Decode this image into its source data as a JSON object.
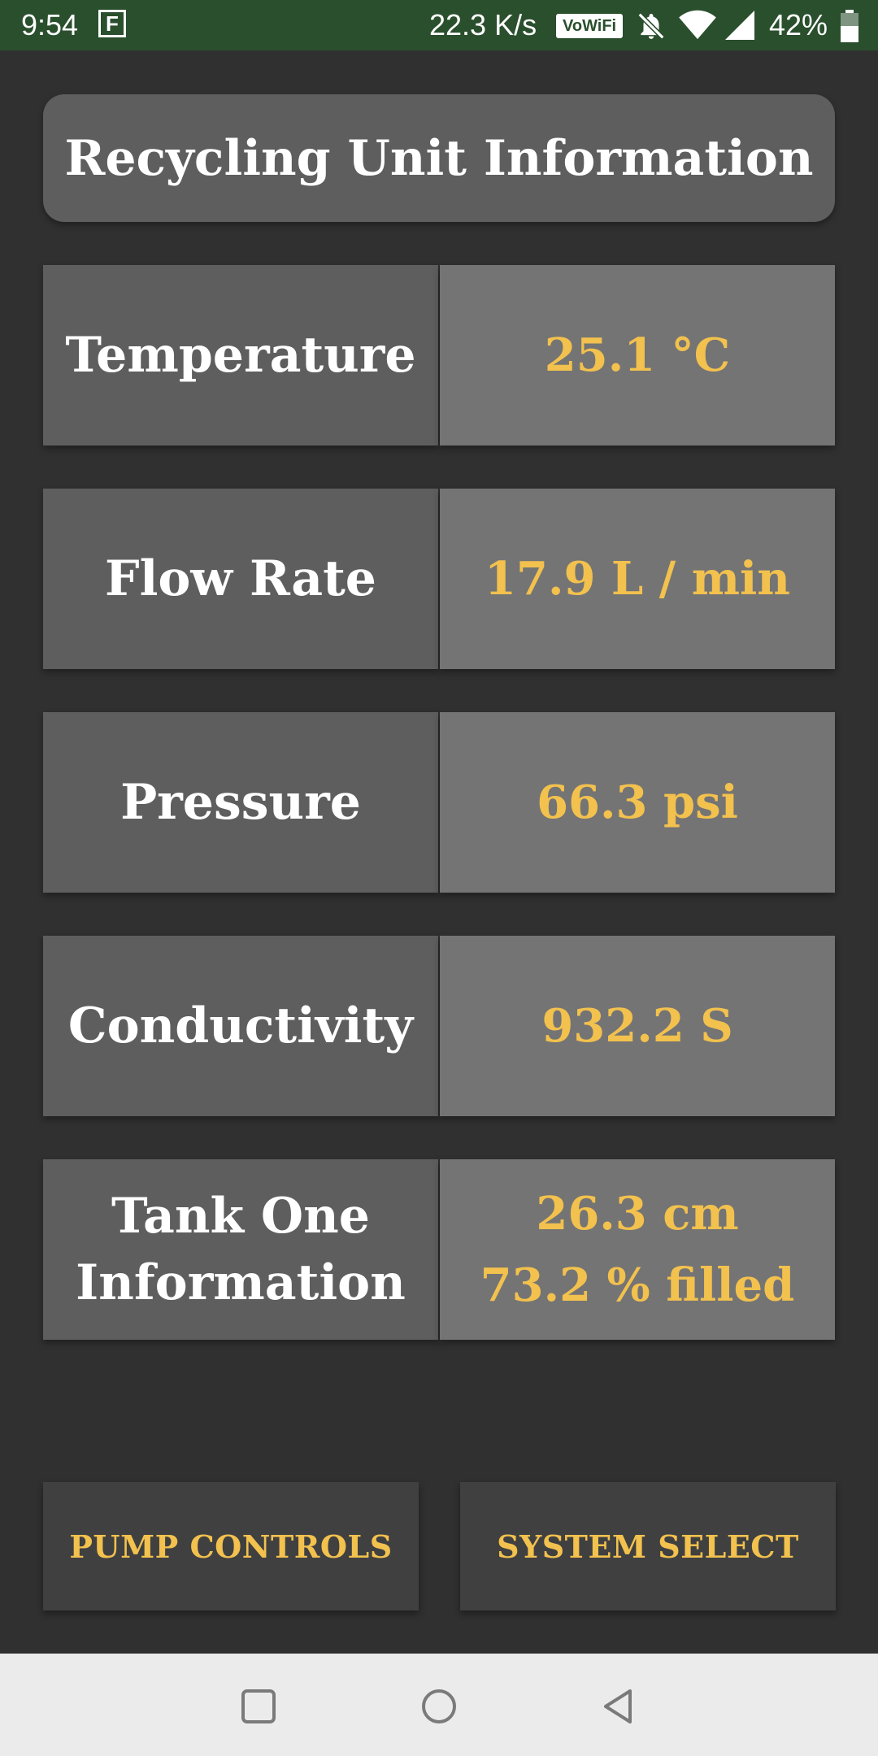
{
  "status_bar": {
    "time": "9:54",
    "notification_letter": "F",
    "net_speed": "22.3 K/s",
    "vowifi": "VoWiFi",
    "battery": "42%",
    "icons": [
      "bell-muted-icon",
      "wifi-icon",
      "signal-icon",
      "battery-icon"
    ]
  },
  "title": "Recycling Unit Information",
  "readings": [
    {
      "label": "Temperature",
      "value": "25.1 °C"
    },
    {
      "label": "Flow Rate",
      "value": "17.9 L / min"
    },
    {
      "label": "Pressure",
      "value": "66.3 psi"
    },
    {
      "label": "Conductivity",
      "value": "932.2 S"
    },
    {
      "label_line1": "Tank One",
      "label_line2": "Information",
      "value": "26.3 cm",
      "value2": "73.2 % filled"
    }
  ],
  "buttons": {
    "pump_controls": "PUMP CONTROLS",
    "system_select": "SYSTEM SELECT"
  },
  "colors": {
    "status_bar": "#2a4f2d",
    "background": "#303030",
    "label_cell": "#5e5e5e",
    "value_cell": "#747474",
    "accent": "#f2c14e"
  },
  "nav_bar": {
    "icons": [
      "recents-square-icon",
      "home-circle-icon",
      "back-triangle-icon"
    ]
  }
}
